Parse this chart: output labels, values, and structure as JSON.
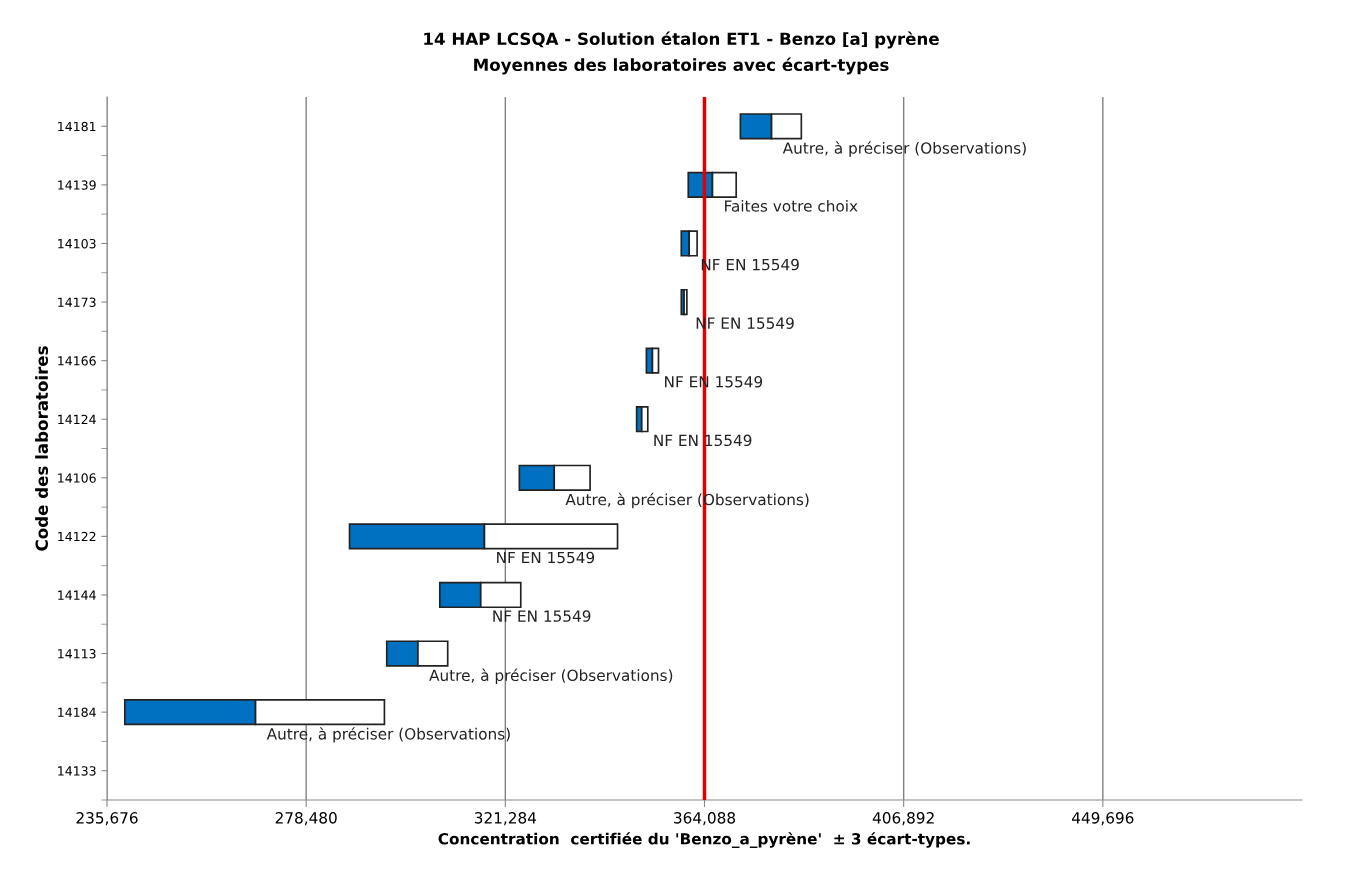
{
  "chart_data": {
    "type": "bar",
    "orientation": "horizontal",
    "title": "14 HAP LCSQA - Solution étalon ET1 - Benzo [a] pyrène",
    "subtitle": "Moyennes des laboratoires avec écart-types",
    "xlabel": "Concentration  certifiée du 'Benzo_a_pyrène'  ± 3 écart-types.",
    "ylabel": "Code des laboratoires",
    "categories": [
      "14181",
      "14139",
      "14103",
      "14173",
      "14166",
      "14124",
      "14106",
      "14122",
      "14144",
      "14113",
      "14184",
      "14133"
    ],
    "series": [
      {
        "color": "#0070c0",
        "base": [
          371800,
          360600,
          359100,
          359100,
          351600,
          349500,
          324300,
          287800,
          307200,
          295800,
          239500,
          null
        ],
        "values": [
          6700,
          5200,
          1700,
          600,
          1300,
          1100,
          7500,
          29000,
          8800,
          6700,
          28100,
          null
        ]
      },
      {
        "color": "#ffffff",
        "base": [
          378500,
          365800,
          360800,
          359700,
          352900,
          350600,
          331800,
          316800,
          316000,
          302500,
          267600,
          null
        ],
        "values": [
          6400,
          5100,
          1700,
          600,
          1300,
          1300,
          7700,
          28600,
          8600,
          6400,
          27700,
          null
        ],
        "value_labels": [
          "Autre, à préciser (Observations)",
          "Faites votre choix",
          "NF EN 15549",
          "NF EN 15549",
          "NF EN 15549",
          "NF EN 15549",
          "Autre, à préciser (Observations)",
          "NF EN 15549",
          "NF EN 15549",
          "Autre, à préciser (Observations)",
          "Autre, à préciser (Observations)",
          null
        ]
      }
    ],
    "xlim": [
      235676,
      492500
    ],
    "xticks": [
      {
        "value": 235676,
        "label": "235,676"
      },
      {
        "value": 278480,
        "label": "278,480"
      },
      {
        "value": 321284,
        "label": "321,284"
      },
      {
        "value": 364088,
        "label": "364,088"
      },
      {
        "value": 406892,
        "label": "406,892"
      },
      {
        "value": 449696,
        "label": "449,696"
      }
    ],
    "grid": "x",
    "ref_lines": [
      {
        "axis": "x",
        "value": 364088,
        "color": "#e00000"
      }
    ]
  }
}
